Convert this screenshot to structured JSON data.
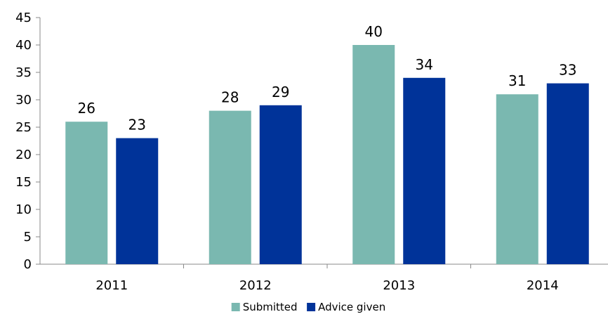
{
  "chart_data": {
    "type": "bar",
    "categories": [
      "2011",
      "2012",
      "2013",
      "2014"
    ],
    "series": [
      {
        "name": "Submitted",
        "values": [
          26,
          28,
          40,
          31
        ],
        "color": "#7ab8b0"
      },
      {
        "name": "Advice given",
        "values": [
          23,
          29,
          34,
          33
        ],
        "color": "#003399"
      }
    ],
    "ylim": [
      0,
      45
    ],
    "yticks": [
      0,
      5,
      10,
      15,
      20,
      25,
      30,
      35,
      40,
      45
    ],
    "grid": false,
    "legend": "bottom-center",
    "data_labels": true
  }
}
